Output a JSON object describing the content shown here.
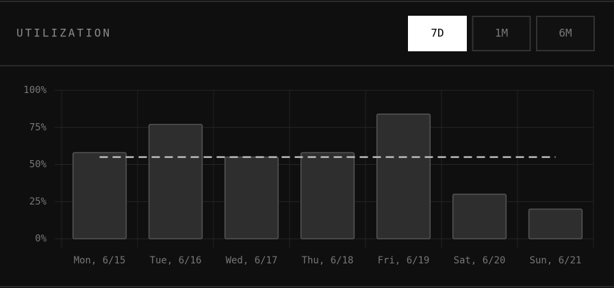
{
  "chart_data": {
    "type": "bar",
    "title": "UTILIZATION",
    "ranges": [
      "7D",
      "1M",
      "6M"
    ],
    "active_range": "7D",
    "categories": [
      "Mon, 6/15",
      "Tue, 6/16",
      "Wed, 6/17",
      "Thu, 6/18",
      "Fri, 6/19",
      "Sat, 6/20",
      "Sun, 6/21"
    ],
    "values": [
      58,
      77,
      55,
      58,
      84,
      30,
      20
    ],
    "color": "#2e2e2e",
    "average": 55,
    "ylim": [
      0,
      100
    ],
    "yticks": [
      {
        "value": 0,
        "label": "0%"
      },
      {
        "value": 25,
        "label": "25%"
      },
      {
        "value": 50,
        "label": "50%"
      },
      {
        "value": 75,
        "label": "75%"
      },
      {
        "value": 100,
        "label": "100%"
      }
    ],
    "grid": true
  }
}
